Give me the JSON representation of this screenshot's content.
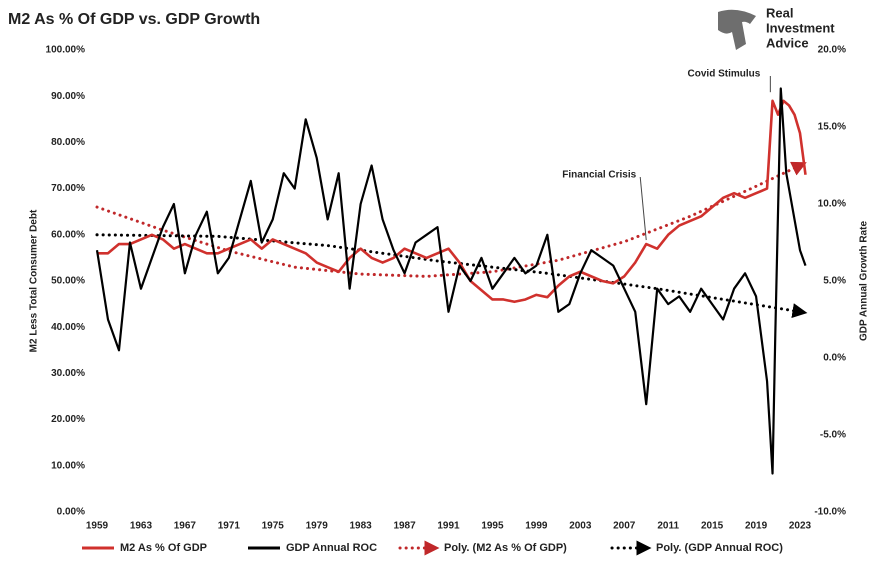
{
  "chart_data": {
    "type": "line",
    "title": "M2 As % Of GDP vs. GDP Growth",
    "brand": [
      "Real",
      "Investment",
      "Advice"
    ],
    "ylabel": "M2 Less Total Consumer Debt",
    "y2label": "GDP Annual Growth Rate",
    "xlim": [
      1959,
      2023.5
    ],
    "xticks": [
      1959,
      1963,
      1967,
      1971,
      1975,
      1979,
      1983,
      1987,
      1991,
      1995,
      1999,
      2003,
      2007,
      2011,
      2015,
      2019,
      2023
    ],
    "ylim": [
      0,
      100
    ],
    "yticks": [
      {
        "value": 0,
        "label": "0.00%"
      },
      {
        "value": 10,
        "label": "10.00%"
      },
      {
        "value": 20,
        "label": "20.00%"
      },
      {
        "value": 30,
        "label": "30.00%"
      },
      {
        "value": 40,
        "label": "40.00%"
      },
      {
        "value": 50,
        "label": "50.00%"
      },
      {
        "value": 60,
        "label": "60.00%"
      },
      {
        "value": 70,
        "label": "70.00%"
      },
      {
        "value": 80,
        "label": "80.00%"
      },
      {
        "value": 90,
        "label": "90.00%"
      },
      {
        "value": 100,
        "label": "100.00%"
      }
    ],
    "y2lim": [
      -10,
      20
    ],
    "y2ticks": [
      {
        "value": -10,
        "label": "-10.0%"
      },
      {
        "value": -5,
        "label": "-5.0%"
      },
      {
        "value": 0,
        "label": "0.0%"
      },
      {
        "value": 5,
        "label": "5.0%"
      },
      {
        "value": 10,
        "label": "10.0%"
      },
      {
        "value": 15,
        "label": "15.0%"
      },
      {
        "value": 20,
        "label": "20.0%"
      }
    ],
    "annotations": [
      {
        "text": "Covid Stimulus",
        "x": 2020.3,
        "y": 90
      },
      {
        "text": "Financial Crisis",
        "x": 2009,
        "y": 58
      }
    ],
    "series": [
      {
        "name": "M2 As % Of GDP",
        "color": "#d0312d",
        "style": "solid",
        "x": [
          1959,
          1960,
          1961,
          1962,
          1963,
          1964,
          1965,
          1966,
          1967,
          1968,
          1969,
          1970,
          1971,
          1972,
          1973,
          1974,
          1975,
          1976,
          1977,
          1978,
          1979,
          1980,
          1981,
          1982,
          1983,
          1984,
          1985,
          1986,
          1987,
          1988,
          1989,
          1990,
          1991,
          1992,
          1993,
          1994,
          1995,
          1996,
          1997,
          1998,
          1999,
          2000,
          2001,
          2002,
          2003,
          2004,
          2005,
          2006,
          2007,
          2008,
          2009,
          2010,
          2011,
          2012,
          2013,
          2014,
          2015,
          2016,
          2017,
          2018,
          2019,
          2020,
          2020.5,
          2021,
          2021.5,
          2022,
          2022.5,
          2023,
          2023.5
        ],
        "values": [
          56,
          56,
          58,
          58,
          59,
          60,
          59,
          57,
          58,
          57,
          56,
          56,
          57,
          58,
          59,
          57,
          59,
          58,
          57,
          56,
          54,
          53,
          52,
          55,
          57,
          55,
          54,
          55,
          57,
          56,
          55,
          56,
          57,
          54,
          50,
          48,
          46,
          46,
          45.5,
          46,
          47,
          46.5,
          49,
          51,
          52,
          51,
          50,
          49.5,
          51,
          54,
          58,
          57,
          60,
          62,
          63,
          64,
          66,
          68,
          69,
          68,
          69,
          70,
          89,
          86,
          89,
          88,
          86,
          82,
          73
        ]
      },
      {
        "name": "GDP Annual ROC",
        "color": "#000000",
        "style": "solid",
        "axis": "y2",
        "x": [
          1959,
          1960,
          1961,
          1962,
          1963,
          1964,
          1965,
          1966,
          1967,
          1968,
          1969,
          1970,
          1971,
          1972,
          1973,
          1974,
          1975,
          1976,
          1977,
          1978,
          1979,
          1980,
          1981,
          1982,
          1983,
          1984,
          1985,
          1986,
          1987,
          1988,
          1989,
          1990,
          1991,
          1992,
          1993,
          1994,
          1995,
          1996,
          1997,
          1998,
          1999,
          2000,
          2001,
          2002,
          2003,
          2004,
          2005,
          2006,
          2007,
          2008,
          2009,
          2010,
          2011,
          2012,
          2013,
          2014,
          2015,
          2016,
          2017,
          2018,
          2019,
          2020,
          2020.5,
          2020.75,
          2021.25,
          2021.75,
          2022.5,
          2023,
          2023.5
        ],
        "values": [
          7,
          2.5,
          0.5,
          7.5,
          4.5,
          6.5,
          8.5,
          10,
          5.5,
          8,
          9.5,
          5.5,
          6.5,
          9,
          11.5,
          7.5,
          9,
          12,
          11,
          15.5,
          13,
          9,
          12,
          4.5,
          10,
          12.5,
          9,
          7,
          5.5,
          7.5,
          8,
          8.5,
          3,
          6,
          5,
          6.5,
          4.5,
          5.5,
          6.5,
          5.5,
          6,
          8,
          3,
          3.5,
          5.5,
          7,
          6.5,
          6,
          4.5,
          3,
          -3,
          4.5,
          3.5,
          4,
          3,
          4.5,
          3.5,
          2.5,
          4.5,
          5.5,
          4,
          -1.5,
          -7.5,
          1.5,
          17.5,
          12,
          9,
          7,
          6
        ]
      },
      {
        "name": "Poly. (M2 As % Of GDP)",
        "color": "#c0282a",
        "style": "dotted",
        "x": [
          1959,
          1965,
          1971,
          1977,
          1983,
          1989,
          1995,
          2001,
          2007,
          2013,
          2019,
          2023
        ],
        "values": [
          66,
          61,
          56.5,
          53,
          51.5,
          51,
          52,
          54.5,
          58.5,
          64,
          70.5,
          75
        ]
      },
      {
        "name": "Poly. (GDP Annual ROC)",
        "color": "#000000",
        "style": "dotted",
        "axis": "y2",
        "x": [
          1959,
          1970,
          1980,
          1990,
          2000,
          2010,
          2023
        ],
        "values": [
          8,
          7.9,
          7.3,
          6.3,
          5.5,
          4.5,
          3
        ]
      }
    ]
  }
}
